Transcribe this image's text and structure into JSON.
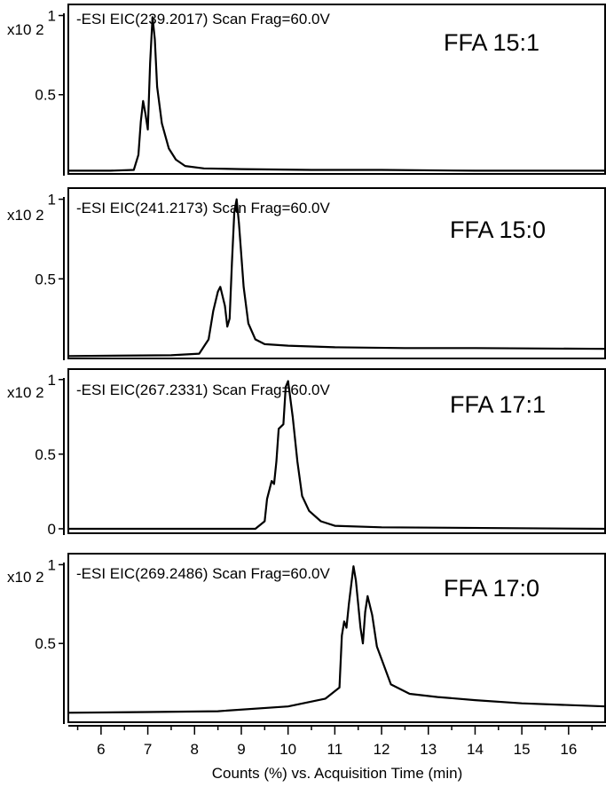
{
  "chart_data": [
    {
      "type": "line",
      "header": "-ESI EIC(239.2017) Scan Frag=60.0V",
      "label": "FFA 15:1",
      "y_multiplier": "x10 2",
      "yticks": [
        "1",
        "0.5"
      ],
      "ytick_values": [
        1,
        0.5
      ],
      "ylim": [
        0,
        1.07
      ],
      "xlim": [
        5.3,
        16.8
      ],
      "points": [
        [
          5.3,
          0.02
        ],
        [
          6.2,
          0.02
        ],
        [
          6.7,
          0.025
        ],
        [
          6.8,
          0.12
        ],
        [
          6.85,
          0.33
        ],
        [
          6.9,
          0.46
        ],
        [
          6.95,
          0.38
        ],
        [
          7.0,
          0.28
        ],
        [
          7.05,
          0.7
        ],
        [
          7.1,
          0.99
        ],
        [
          7.15,
          0.85
        ],
        [
          7.2,
          0.55
        ],
        [
          7.3,
          0.32
        ],
        [
          7.45,
          0.16
        ],
        [
          7.6,
          0.09
        ],
        [
          7.8,
          0.05
        ],
        [
          8.2,
          0.035
        ],
        [
          9.0,
          0.03
        ],
        [
          10.5,
          0.025
        ],
        [
          12,
          0.025
        ],
        [
          14,
          0.02
        ],
        [
          16.8,
          0.02
        ]
      ]
    },
    {
      "type": "line",
      "header": "-ESI EIC(241.2173) Scan Frag=60.0V",
      "label": "FFA 15:0",
      "y_multiplier": "x10 2",
      "yticks": [
        "1",
        "0.5"
      ],
      "ytick_values": [
        1,
        0.5
      ],
      "ylim": [
        0,
        1.07
      ],
      "xlim": [
        5.3,
        16.8
      ],
      "points": [
        [
          5.3,
          0.015
        ],
        [
          7.5,
          0.02
        ],
        [
          8.1,
          0.03
        ],
        [
          8.3,
          0.12
        ],
        [
          8.4,
          0.3
        ],
        [
          8.5,
          0.42
        ],
        [
          8.55,
          0.45
        ],
        [
          8.65,
          0.33
        ],
        [
          8.7,
          0.2
        ],
        [
          8.75,
          0.25
        ],
        [
          8.8,
          0.6
        ],
        [
          8.85,
          0.92
        ],
        [
          8.9,
          1.0
        ],
        [
          8.95,
          0.85
        ],
        [
          9.05,
          0.45
        ],
        [
          9.15,
          0.22
        ],
        [
          9.3,
          0.12
        ],
        [
          9.5,
          0.09
        ],
        [
          10.0,
          0.08
        ],
        [
          11,
          0.07
        ],
        [
          12.5,
          0.065
        ],
        [
          14,
          0.065
        ],
        [
          16.8,
          0.06
        ]
      ]
    },
    {
      "type": "line",
      "header": "-ESI EIC(267.2331) Scan Frag=60.0V",
      "label": "FFA 17:1",
      "y_multiplier": "x10 2",
      "yticks": [
        "1",
        "0.5",
        "0"
      ],
      "ytick_values": [
        1,
        0.5,
        0
      ],
      "ylim": [
        -0.03,
        1.07
      ],
      "xlim": [
        5.3,
        16.8
      ],
      "points": [
        [
          5.3,
          0.0
        ],
        [
          9.3,
          0.0
        ],
        [
          9.5,
          0.05
        ],
        [
          9.55,
          0.2
        ],
        [
          9.65,
          0.32
        ],
        [
          9.7,
          0.3
        ],
        [
          9.75,
          0.45
        ],
        [
          9.8,
          0.67
        ],
        [
          9.9,
          0.7
        ],
        [
          9.95,
          0.95
        ],
        [
          10.0,
          0.99
        ],
        [
          10.1,
          0.75
        ],
        [
          10.2,
          0.45
        ],
        [
          10.3,
          0.22
        ],
        [
          10.45,
          0.12
        ],
        [
          10.7,
          0.05
        ],
        [
          11.0,
          0.02
        ],
        [
          12,
          0.01
        ],
        [
          16.8,
          0.0
        ]
      ]
    },
    {
      "type": "line",
      "header": "-ESI EIC(269.2486) Scan Frag=60.0V",
      "label": "FFA 17:0",
      "y_multiplier": "x10 2",
      "yticks": [
        "1",
        "0.5"
      ],
      "ytick_values": [
        1,
        0.5
      ],
      "ylim": [
        0,
        1.07
      ],
      "xlim": [
        5.3,
        16.8
      ],
      "points": [
        [
          5.3,
          0.06
        ],
        [
          7,
          0.065
        ],
        [
          8.5,
          0.07
        ],
        [
          10,
          0.1
        ],
        [
          10.8,
          0.15
        ],
        [
          11.1,
          0.22
        ],
        [
          11.15,
          0.55
        ],
        [
          11.2,
          0.64
        ],
        [
          11.25,
          0.6
        ],
        [
          11.3,
          0.75
        ],
        [
          11.4,
          0.99
        ],
        [
          11.45,
          0.9
        ],
        [
          11.55,
          0.6
        ],
        [
          11.6,
          0.5
        ],
        [
          11.65,
          0.7
        ],
        [
          11.7,
          0.8
        ],
        [
          11.8,
          0.68
        ],
        [
          11.9,
          0.48
        ],
        [
          12.0,
          0.4
        ],
        [
          12.2,
          0.24
        ],
        [
          12.6,
          0.18
        ],
        [
          13.2,
          0.16
        ],
        [
          14,
          0.14
        ],
        [
          15,
          0.12
        ],
        [
          16.8,
          0.1
        ]
      ]
    }
  ],
  "x_axis": {
    "ticks": [
      6,
      7,
      8,
      9,
      10,
      11,
      12,
      13,
      14,
      15,
      16
    ],
    "tick_labels": [
      "6",
      "7",
      "8",
      "9",
      "10",
      "11",
      "12",
      "13",
      "14",
      "15",
      "16"
    ],
    "label": "Counts (%) vs. Acquisition Time (min)"
  },
  "colors": {
    "trace": "#000000",
    "axis": "#000000",
    "background": "#ffffff"
  }
}
